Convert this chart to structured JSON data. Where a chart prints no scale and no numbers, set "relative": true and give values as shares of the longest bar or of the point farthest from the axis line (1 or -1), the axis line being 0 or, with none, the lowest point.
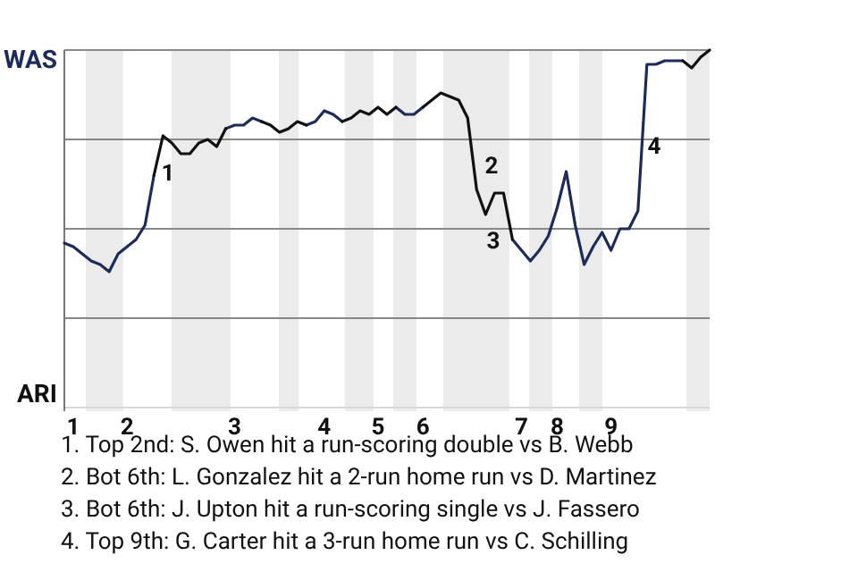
{
  "chart_data": {
    "type": "line",
    "relative": true,
    "categories": [
      null,
      "1",
      null,
      null,
      null,
      null,
      null,
      "2",
      null,
      null,
      null,
      null,
      null,
      null,
      null,
      null,
      null,
      null,
      null,
      "3",
      null,
      null,
      null,
      null,
      null,
      null,
      null,
      null,
      null,
      "4",
      null,
      null,
      null,
      null,
      null,
      "5",
      null,
      null,
      null,
      null,
      "6",
      null,
      null,
      null,
      null,
      null,
      null,
      null,
      null,
      null,
      null,
      "7",
      null,
      null,
      null,
      "8",
      null,
      null,
      null,
      null,
      null,
      "9",
      null,
      null,
      null,
      null,
      null,
      null,
      null,
      null,
      null,
      null,
      null
    ],
    "series": [
      {
        "color": "#1c2b5a",
        "values": [
          0.46,
          0.45,
          0.43,
          0.41,
          0.4,
          0.38,
          0.43,
          0.45,
          0.47,
          0.51,
          0.65,
          null,
          null,
          null,
          null,
          null,
          null,
          null,
          0.78,
          0.79,
          0.79,
          0.81,
          0.8,
          null,
          null,
          null,
          null,
          0.79,
          0.8,
          0.83,
          0.82,
          0.8,
          null,
          null,
          null,
          null,
          null,
          0.84,
          0.82,
          0.82,
          0.84,
          null,
          null,
          null,
          null,
          null,
          null,
          null,
          null,
          null,
          0.47,
          0.44,
          0.41,
          0.44,
          0.48,
          0.56,
          0.66,
          0.51,
          0.4,
          0.45,
          0.49,
          0.44,
          0.5,
          0.5,
          0.55,
          0.96,
          0.96,
          0.97,
          0.97,
          0.97,
          null,
          null,
          null
        ]
      },
      {
        "color": "#111111",
        "values": [
          null,
          null,
          null,
          null,
          null,
          null,
          null,
          null,
          null,
          null,
          0.65,
          0.76,
          0.74,
          0.71,
          0.71,
          0.74,
          0.75,
          0.73,
          0.78,
          null,
          null,
          null,
          0.8,
          0.79,
          0.77,
          0.78,
          0.8,
          0.79,
          null,
          null,
          null,
          0.8,
          0.81,
          0.83,
          0.82,
          0.84,
          0.82,
          0.84,
          null,
          null,
          0.84,
          0.86,
          0.88,
          0.87,
          0.86,
          0.81,
          0.61,
          0.54,
          0.6,
          0.6,
          0.47,
          null,
          null,
          null,
          null,
          null,
          null,
          null,
          null,
          null,
          null,
          null,
          null,
          null,
          null,
          null,
          null,
          null,
          null,
          0.97,
          0.95,
          0.98,
          1.0
        ]
      }
    ],
    "ref_lines": [
      {
        "axis": "y",
        "value": 0.25,
        "color": "#888888"
      },
      {
        "axis": "y",
        "value": 0.5,
        "color": "#888888"
      },
      {
        "axis": "y",
        "value": 0.75,
        "color": "#888888"
      },
      {
        "axis": "y",
        "value": 1,
        "color": "#888888"
      }
    ],
    "annotations": [
      "WAS",
      "ARI",
      "1",
      "2",
      "3",
      "4",
      "1. Top 2nd: S. Owen hit a run-scoring double vs B. Webb",
      "2. Bot 6th: L. Gonzalez hit a 2-run home run vs D. Martinez",
      "3. Bot 6th: J. Upton hit a run-scoring single vs J. Fassero",
      "4. Top 9th: G. Carter hit a 3-run home run vs C. Schilling"
    ]
  }
}
